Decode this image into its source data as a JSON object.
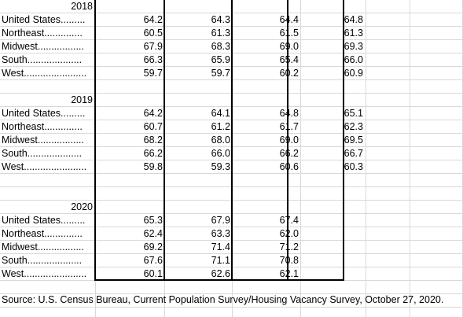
{
  "sections": [
    {
      "year": "2018",
      "rows": [
        {
          "label": "United States.........",
          "values": [
            "64.2",
            "64.3",
            "64.4",
            "64.8"
          ]
        },
        {
          "label": "Northeast..............",
          "values": [
            "60.5",
            "61.3",
            "61.5",
            "61.3"
          ]
        },
        {
          "label": "Midwest.................",
          "values": [
            "67.9",
            "68.3",
            "69.0",
            "69.3"
          ]
        },
        {
          "label": "South....................",
          "values": [
            "66.3",
            "65.9",
            "65.4",
            "66.0"
          ]
        },
        {
          "label": "West.......................",
          "values": [
            "59.7",
            "59.7",
            "60.2",
            "60.9"
          ]
        }
      ]
    },
    {
      "year": "2019",
      "rows": [
        {
          "label": "United States.........",
          "values": [
            "64.2",
            "64.1",
            "64.8",
            "65.1"
          ]
        },
        {
          "label": "Northeast..............",
          "values": [
            "60.7",
            "61.2",
            "61.7",
            "62.3"
          ]
        },
        {
          "label": "Midwest.................",
          "values": [
            "68.2",
            "68.0",
            "69.0",
            "69.5"
          ]
        },
        {
          "label": "South....................",
          "values": [
            "66.2",
            "66.0",
            "66.2",
            "66.7"
          ]
        },
        {
          "label": "West.......................",
          "values": [
            "59.8",
            "59.3",
            "60.6",
            "60.3"
          ]
        }
      ]
    },
    {
      "year": "2020",
      "rows": [
        {
          "label": "United States.........",
          "values": [
            "65.3",
            "67.9",
            "67.4"
          ]
        },
        {
          "label": "Northeast..............",
          "values": [
            "62.4",
            "63.3",
            "62.0"
          ]
        },
        {
          "label": "Midwest.................",
          "values": [
            "69.2",
            "71.4",
            "71.2"
          ]
        },
        {
          "label": "South....................",
          "values": [
            "67.6",
            "71.1",
            "70.8"
          ]
        },
        {
          "label": "West.......................",
          "values": [
            "60.1",
            "62.6",
            "62.1"
          ]
        }
      ]
    }
  ],
  "source": "Source: U.S. Census Bureau, Current Population Survey/Housing Vacancy Survey, October 27, 2020."
}
